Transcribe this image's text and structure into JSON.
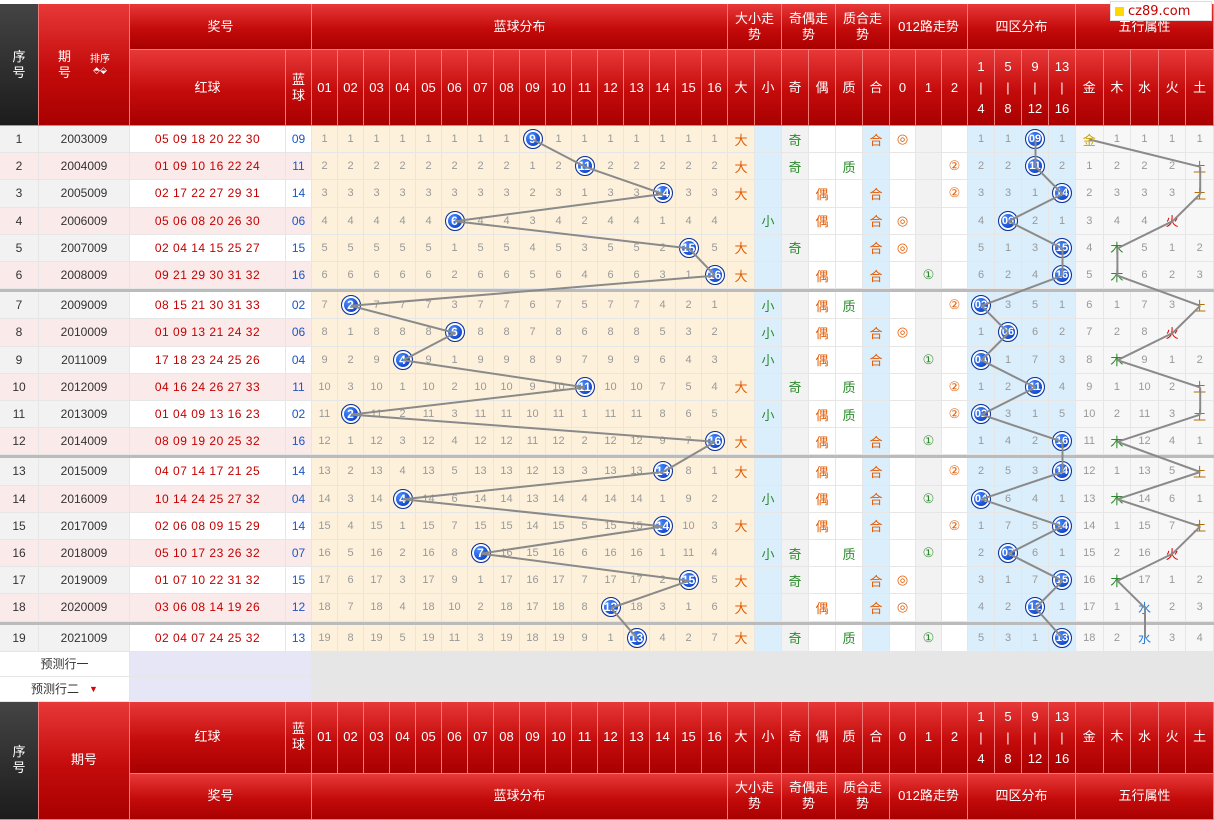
{
  "logo": "cz89.com",
  "header": {
    "xuhao": "序号",
    "qihao": "期号",
    "sort": "排序",
    "jianghao": "奖号",
    "blue_dist": "蓝球分布",
    "daxiao": "大小走势",
    "jiou": "奇偶走势",
    "zhihe": "质合走势",
    "road012": "012路走势",
    "sixarea": "四区分布",
    "wuxing": "五行属性",
    "red_ball": "红球",
    "blue_ball": "蓝球",
    "blue_cols": [
      "01",
      "02",
      "03",
      "04",
      "05",
      "06",
      "07",
      "08",
      "09",
      "10",
      "11",
      "12",
      "13",
      "14",
      "15",
      "16"
    ],
    "dx_cols": [
      "大",
      "小"
    ],
    "jo_cols": [
      "奇",
      "偶"
    ],
    "zh_cols": [
      "质",
      "合"
    ],
    "r_cols": [
      "0",
      "1",
      "2"
    ],
    "area_cols": [
      "1|4",
      "5|8",
      "9|12",
      "13|16"
    ],
    "wx_cols": [
      "金",
      "木",
      "水",
      "火",
      "土"
    ]
  },
  "footer": {
    "xuhao": "序号",
    "qihao": "期号"
  },
  "predict": [
    "预测行一",
    "预测行二"
  ],
  "rows": [
    {
      "n": "1",
      "issue": "2003009",
      "red": "05 09 18 20 22 30",
      "blue": "09",
      "bm": [
        "1",
        "1",
        "1",
        "1",
        "1",
        "1",
        "1",
        "1",
        "9",
        "1",
        "1",
        "1",
        "1",
        "1",
        "1",
        "1"
      ],
      "dx": "大",
      "jo": "奇",
      "zh": "合",
      "r": "0",
      "area": [
        "1",
        "1",
        "09",
        "1"
      ],
      "wx": "金",
      "wm": [
        "",
        "1",
        "1",
        "1",
        "1"
      ]
    },
    {
      "n": "2",
      "issue": "2004009",
      "red": "01 09 10 16 22 24",
      "blue": "11",
      "bm": [
        "2",
        "2",
        "2",
        "2",
        "2",
        "2",
        "2",
        "2",
        "1",
        "2",
        "11",
        "2",
        "2",
        "2",
        "2",
        "2"
      ],
      "dx": "大",
      "jo": "奇",
      "zh": "质",
      "r": "2",
      "area": [
        "2",
        "2",
        "11",
        "2"
      ],
      "wx": "土",
      "wm": [
        "1",
        "2",
        "2",
        "2",
        ""
      ]
    },
    {
      "n": "3",
      "issue": "2005009",
      "red": "02 17 22 27 29 31",
      "blue": "14",
      "bm": [
        "3",
        "3",
        "3",
        "3",
        "3",
        "3",
        "3",
        "3",
        "2",
        "3",
        "1",
        "3",
        "3",
        "14",
        "3",
        "3"
      ],
      "dx": "大",
      "jo": "偶",
      "zh": "合",
      "r": "2",
      "area": [
        "3",
        "3",
        "1",
        "14"
      ],
      "wx": "土",
      "wm": [
        "2",
        "3",
        "3",
        "3",
        ""
      ]
    },
    {
      "n": "4",
      "issue": "2006009",
      "red": "05 06 08 20 26 30",
      "blue": "06",
      "bm": [
        "4",
        "4",
        "4",
        "4",
        "4",
        "6",
        "4",
        "4",
        "3",
        "4",
        "2",
        "4",
        "4",
        "1",
        "4",
        "4"
      ],
      "dx": "小",
      "jo": "偶",
      "zh": "合",
      "r": "0",
      "area": [
        "4",
        "06",
        "2",
        "1"
      ],
      "wx": "火",
      "wm": [
        "3",
        "4",
        "4",
        "",
        ""
      ]
    },
    {
      "n": "5",
      "issue": "2007009",
      "red": "02 04 14 15 25 27",
      "blue": "15",
      "bm": [
        "5",
        "5",
        "5",
        "5",
        "5",
        "1",
        "5",
        "5",
        "4",
        "5",
        "3",
        "5",
        "5",
        "2",
        "15",
        "5"
      ],
      "dx": "大",
      "jo": "奇",
      "zh": "合",
      "r": "0",
      "area": [
        "5",
        "1",
        "3",
        "15"
      ],
      "wx": "木",
      "wm": [
        "4",
        "",
        "5",
        "1",
        "2"
      ]
    },
    {
      "n": "6",
      "issue": "2008009",
      "red": "09 21 29 30 31 32",
      "blue": "16",
      "bm": [
        "6",
        "6",
        "6",
        "6",
        "6",
        "2",
        "6",
        "6",
        "5",
        "6",
        "4",
        "6",
        "6",
        "3",
        "1",
        "16"
      ],
      "dx": "大",
      "jo": "偶",
      "zh": "合",
      "r": "1",
      "area": [
        "6",
        "2",
        "4",
        "16"
      ],
      "wx": "木",
      "wm": [
        "5",
        "",
        "6",
        "2",
        "3"
      ]
    },
    {
      "n": "7",
      "issue": "2009009",
      "red": "08 15 21 30 31 33",
      "blue": "02",
      "bm": [
        "7",
        "2",
        "7",
        "7",
        "7",
        "3",
        "7",
        "7",
        "6",
        "7",
        "5",
        "7",
        "7",
        "4",
        "2",
        "1"
      ],
      "dx": "小",
      "jo": "偶",
      "zh": "质",
      "r": "2",
      "area": [
        "02",
        "3",
        "5",
        "1"
      ],
      "wx": "土",
      "wm": [
        "6",
        "1",
        "7",
        "3",
        ""
      ]
    },
    {
      "n": "8",
      "issue": "2010009",
      "red": "01 09 13 21 24 32",
      "blue": "06",
      "bm": [
        "8",
        "1",
        "8",
        "8",
        "8",
        "6",
        "8",
        "8",
        "7",
        "8",
        "6",
        "8",
        "8",
        "5",
        "3",
        "2"
      ],
      "dx": "小",
      "jo": "偶",
      "zh": "合",
      "r": "0",
      "area": [
        "1",
        "06",
        "6",
        "2"
      ],
      "wx": "火",
      "wm": [
        "7",
        "2",
        "8",
        "",
        ""
      ]
    },
    {
      "n": "9",
      "issue": "2011009",
      "red": "17 18 23 24 25 26",
      "blue": "04",
      "bm": [
        "9",
        "2",
        "9",
        "4",
        "9",
        "1",
        "9",
        "9",
        "8",
        "9",
        "7",
        "9",
        "9",
        "6",
        "4",
        "3"
      ],
      "dx": "小",
      "jo": "偶",
      "zh": "合",
      "r": "1",
      "area": [
        "04",
        "1",
        "7",
        "3"
      ],
      "wx": "木",
      "wm": [
        "8",
        "",
        "9",
        "1",
        "2"
      ]
    },
    {
      "n": "10",
      "issue": "2012009",
      "red": "04 16 24 26 27 33",
      "blue": "11",
      "bm": [
        "10",
        "3",
        "10",
        "1",
        "10",
        "2",
        "10",
        "10",
        "9",
        "10",
        "11",
        "10",
        "10",
        "7",
        "5",
        "4"
      ],
      "dx": "大",
      "jo": "奇",
      "zh": "质",
      "r": "2",
      "area": [
        "1",
        "2",
        "11",
        "4"
      ],
      "wx": "土",
      "wm": [
        "9",
        "1",
        "10",
        "2",
        ""
      ]
    },
    {
      "n": "11",
      "issue": "2013009",
      "red": "01 04 09 13 16 23",
      "blue": "02",
      "bm": [
        "11",
        "2",
        "11",
        "2",
        "11",
        "3",
        "11",
        "11",
        "10",
        "11",
        "1",
        "11",
        "11",
        "8",
        "6",
        "5"
      ],
      "dx": "小",
      "jo": "偶",
      "zh": "质",
      "r": "2",
      "area": [
        "02",
        "3",
        "1",
        "5"
      ],
      "wx": "土",
      "wm": [
        "10",
        "2",
        "11",
        "3",
        ""
      ]
    },
    {
      "n": "12",
      "issue": "2014009",
      "red": "08 09 19 20 25 32",
      "blue": "16",
      "bm": [
        "12",
        "1",
        "12",
        "3",
        "12",
        "4",
        "12",
        "12",
        "11",
        "12",
        "2",
        "12",
        "12",
        "9",
        "7",
        "16"
      ],
      "dx": "大",
      "jo": "偶",
      "zh": "合",
      "r": "1",
      "area": [
        "1",
        "4",
        "2",
        "16"
      ],
      "wx": "木",
      "wm": [
        "11",
        "",
        "12",
        "4",
        "1"
      ]
    },
    {
      "n": "13",
      "issue": "2015009",
      "red": "04 07 14 17 21 25",
      "blue": "14",
      "bm": [
        "13",
        "2",
        "13",
        "4",
        "13",
        "5",
        "13",
        "13",
        "12",
        "13",
        "3",
        "13",
        "13",
        "14",
        "8",
        "1"
      ],
      "dx": "大",
      "jo": "偶",
      "zh": "合",
      "r": "2",
      "area": [
        "2",
        "5",
        "3",
        "14"
      ],
      "wx": "土",
      "wm": [
        "12",
        "1",
        "13",
        "5",
        ""
      ]
    },
    {
      "n": "14",
      "issue": "2016009",
      "red": "10 14 24 25 27 32",
      "blue": "04",
      "bm": [
        "14",
        "3",
        "14",
        "4",
        "14",
        "6",
        "14",
        "14",
        "13",
        "14",
        "4",
        "14",
        "14",
        "1",
        "9",
        "2"
      ],
      "dx": "小",
      "jo": "偶",
      "zh": "合",
      "r": "1",
      "area": [
        "04",
        "6",
        "4",
        "1"
      ],
      "wx": "木",
      "wm": [
        "13",
        "",
        "14",
        "6",
        "1"
      ]
    },
    {
      "n": "15",
      "issue": "2017009",
      "red": "02 06 08 09 15 29",
      "blue": "14",
      "bm": [
        "15",
        "4",
        "15",
        "1",
        "15",
        "7",
        "15",
        "15",
        "14",
        "15",
        "5",
        "15",
        "15",
        "14",
        "10",
        "3"
      ],
      "dx": "大",
      "jo": "偶",
      "zh": "合",
      "r": "2",
      "area": [
        "1",
        "7",
        "5",
        "14"
      ],
      "wx": "土",
      "wm": [
        "14",
        "1",
        "15",
        "7",
        ""
      ]
    },
    {
      "n": "16",
      "issue": "2018009",
      "red": "05 10 17 23 26 32",
      "blue": "07",
      "bm": [
        "16",
        "5",
        "16",
        "2",
        "16",
        "8",
        "7",
        "16",
        "15",
        "16",
        "6",
        "16",
        "16",
        "1",
        "11",
        "4"
      ],
      "dx": "小",
      "jo": "奇",
      "zh": "质",
      "r": "1",
      "area": [
        "2",
        "07",
        "6",
        "1"
      ],
      "wx": "火",
      "wm": [
        "15",
        "2",
        "16",
        "",
        ""
      ]
    },
    {
      "n": "17",
      "issue": "2019009",
      "red": "01 07 10 22 31 32",
      "blue": "15",
      "bm": [
        "17",
        "6",
        "17",
        "3",
        "17",
        "9",
        "1",
        "17",
        "16",
        "17",
        "7",
        "17",
        "17",
        "2",
        "15",
        "5"
      ],
      "dx": "大",
      "jo": "奇",
      "zh": "合",
      "r": "0",
      "area": [
        "3",
        "1",
        "7",
        "15"
      ],
      "wx": "木",
      "wm": [
        "16",
        "",
        "17",
        "1",
        "2"
      ]
    },
    {
      "n": "18",
      "issue": "2020009",
      "red": "03 06 08 14 19 26",
      "blue": "12",
      "bm": [
        "18",
        "7",
        "18",
        "4",
        "18",
        "10",
        "2",
        "18",
        "17",
        "18",
        "8",
        "12",
        "18",
        "3",
        "1",
        "6"
      ],
      "dx": "大",
      "jo": "偶",
      "zh": "合",
      "r": "0",
      "area": [
        "4",
        "2",
        "12",
        "1"
      ],
      "wx": "水",
      "wm": [
        "17",
        "1",
        "",
        "2",
        "3"
      ]
    },
    {
      "n": "19",
      "issue": "2021009",
      "red": "02 04 07 24 25 32",
      "blue": "13",
      "bm": [
        "19",
        "8",
        "19",
        "5",
        "19",
        "11",
        "3",
        "19",
        "18",
        "19",
        "9",
        "1",
        "13",
        "4",
        "2",
        "7"
      ],
      "dx": "大",
      "jo": "奇",
      "zh": "质",
      "r": "1",
      "area": [
        "5",
        "3",
        "1",
        "13"
      ],
      "wx": "水",
      "wm": [
        "18",
        "2",
        "",
        "3",
        "4"
      ]
    }
  ]
}
